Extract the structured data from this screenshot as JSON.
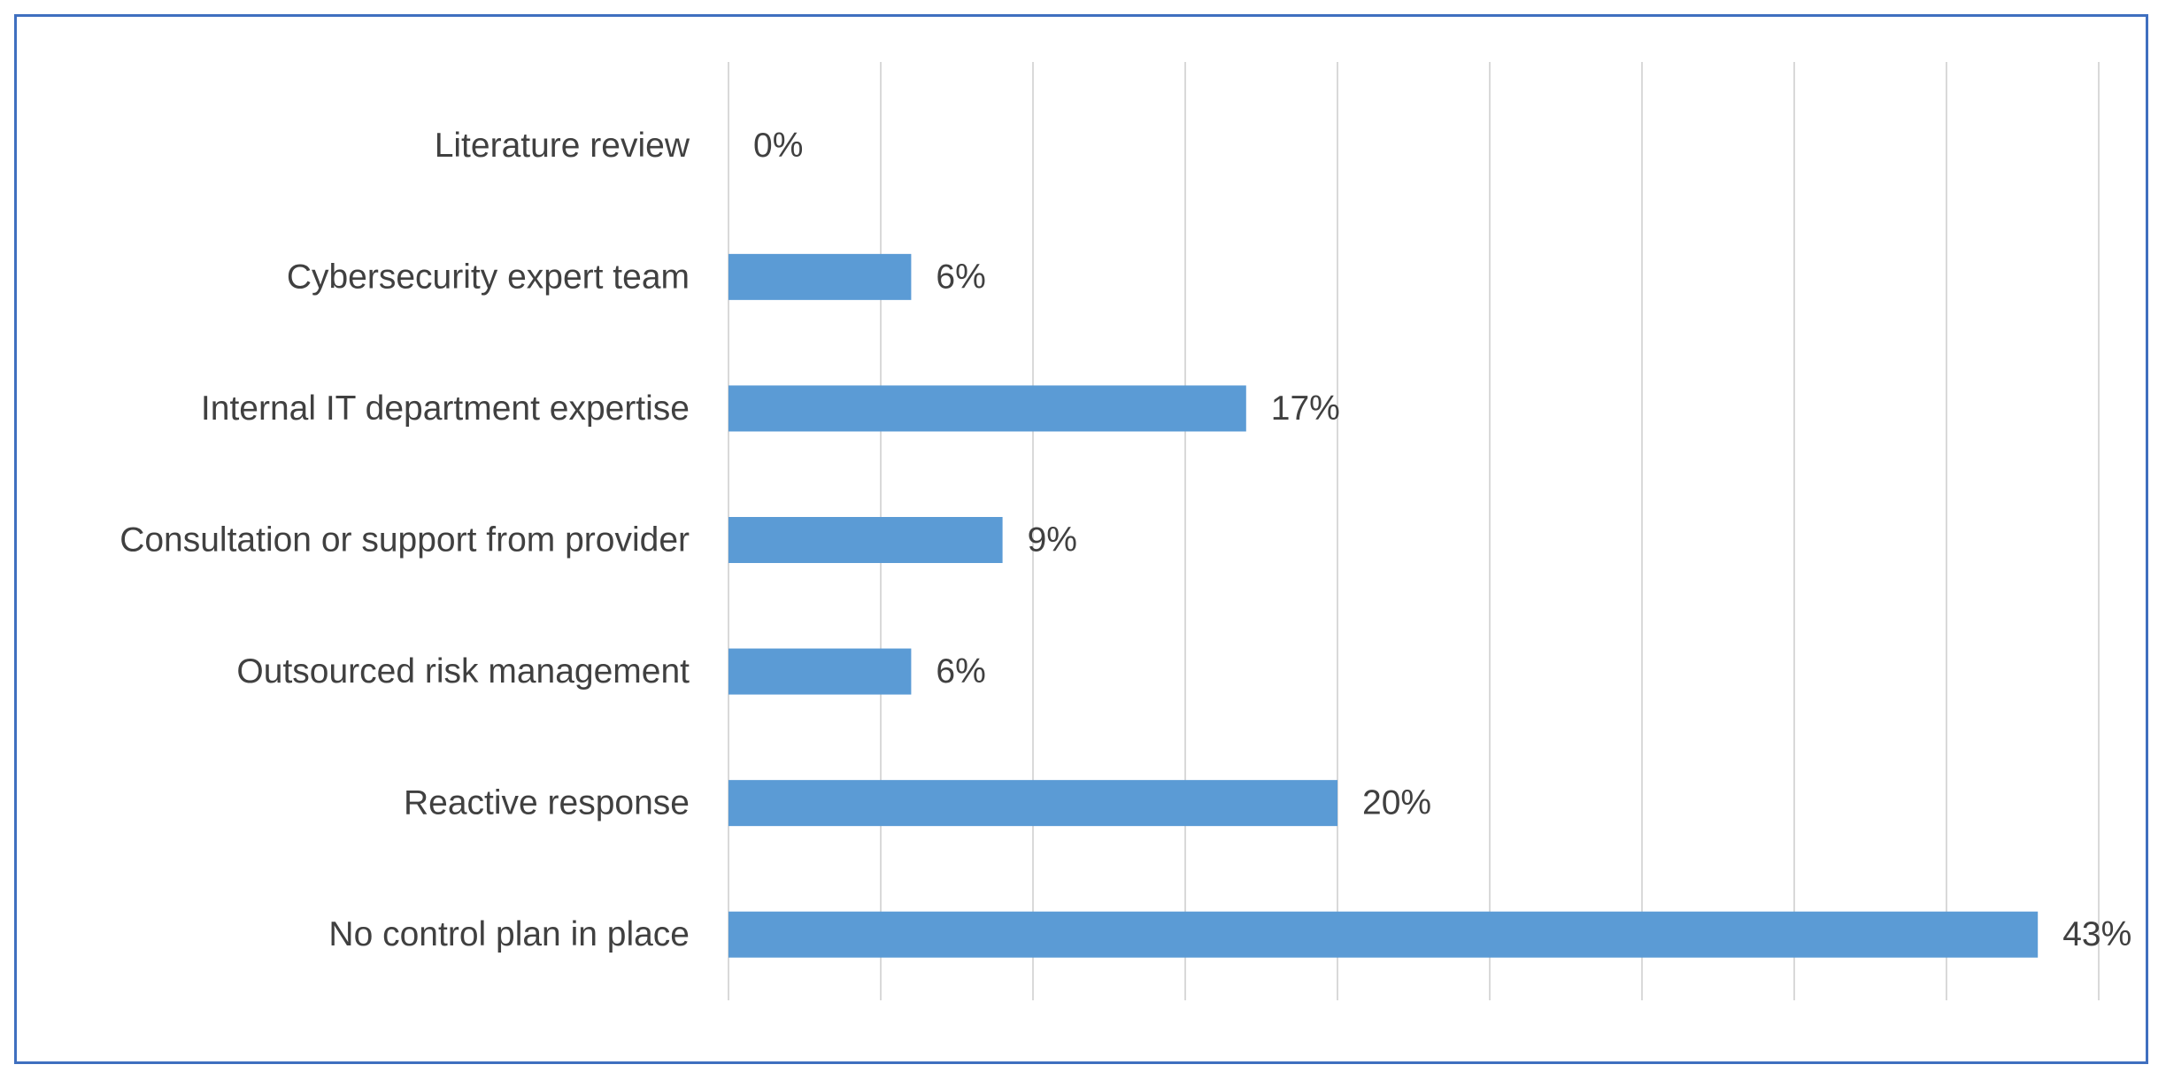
{
  "chart_data": {
    "type": "bar",
    "orientation": "horizontal",
    "categories": [
      "Literature review",
      "Cybersecurity expert team",
      "Internal IT department expertise",
      "Consultation or support from provider",
      "Outsourced risk management",
      "Reactive response",
      "No control plan in place"
    ],
    "values": [
      0,
      6,
      17,
      9,
      6,
      20,
      43
    ],
    "value_labels": [
      "0%",
      "6%",
      "17%",
      "9%",
      "6%",
      "20%",
      "43%"
    ],
    "unit": "%",
    "xlim": [
      0,
      45
    ],
    "grid": true,
    "bar_color": "#5b9bd5"
  }
}
